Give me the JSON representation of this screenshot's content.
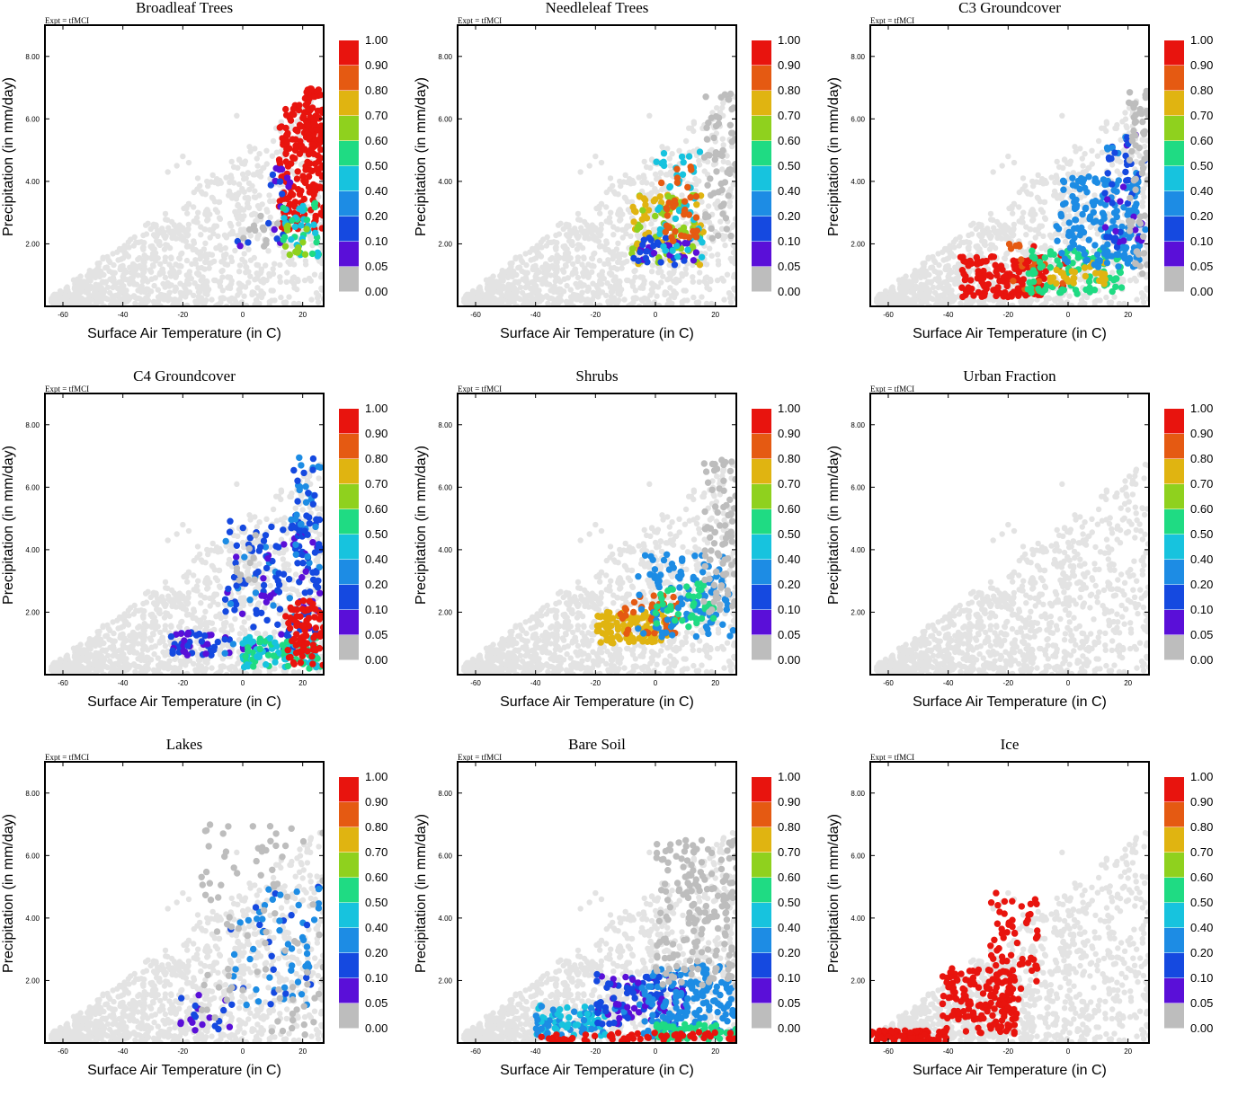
{
  "figure": {
    "expt_label": "Expt = tfMCI",
    "colorbar_labels": [
      "1.00",
      "0.90",
      "0.80",
      "0.70",
      "0.60",
      "0.50",
      "0.40",
      "0.20",
      "0.10",
      "0.05",
      "0.00"
    ],
    "colorbar_colors": [
      "#e8140e",
      "#e55a12",
      "#e0b411",
      "#8fd11e",
      "#1fdb83",
      "#17c3de",
      "#1d8ce4",
      "#1549e0",
      "#5a0fd8",
      "#bdbdbd"
    ],
    "background_color": "#e3e3e3",
    "zero_color": "#bdbdbd"
  },
  "chart_data": [
    {
      "type": "scatter",
      "title": "Broadleaf Trees",
      "xlabel": "Surface Air Temperature (in C)",
      "ylabel": "Precipitation (in mm/day)",
      "xlim": [
        -66,
        27
      ],
      "ylim": [
        0,
        9
      ],
      "xticks": [
        "-60",
        "-40",
        "-20",
        "0",
        "20"
      ],
      "yticks": [
        "2.00",
        "4.00",
        "6.00",
        "8.00"
      ],
      "clusters": [
        {
          "x": [
            12,
            27
          ],
          "y": [
            2.4,
            6.5
          ],
          "v": 0.85,
          "n": 190
        },
        {
          "x": [
            20,
            26
          ],
          "y": [
            5.0,
            7.0
          ],
          "v": 0.85,
          "n": 50
        },
        {
          "x": [
            8,
            16
          ],
          "y": [
            2.0,
            4.5
          ],
          "v": 0.05,
          "n": 22
        },
        {
          "x": [
            13,
            26
          ],
          "y": [
            1.6,
            3.4
          ],
          "v": 0.4,
          "n": 40
        },
        {
          "x": [
            14,
            22
          ],
          "y": [
            1.6,
            2.6
          ],
          "v": 0.55,
          "n": 14
        },
        {
          "x": [
            0,
            8
          ],
          "y": [
            1.8,
            3.0
          ],
          "v": 0.0,
          "n": 10
        },
        {
          "x": [
            -2,
            2
          ],
          "y": [
            1.9,
            2.1
          ],
          "v": 0.05,
          "n": 3
        }
      ]
    },
    {
      "type": "scatter",
      "title": "Needleleaf Trees",
      "xlabel": "Surface Air Temperature (in C)",
      "ylabel": "Precipitation (in mm/day)",
      "xlim": [
        -66,
        27
      ],
      "ylim": [
        0,
        9
      ],
      "xticks": [
        "-60",
        "-40",
        "-20",
        "0",
        "20"
      ],
      "yticks": [
        "2.00",
        "4.00",
        "6.00",
        "8.00"
      ],
      "clusters": [
        {
          "x": [
            -8,
            16
          ],
          "y": [
            1.3,
            3.6
          ],
          "v": 0.6,
          "n": 90
        },
        {
          "x": [
            -8,
            14
          ],
          "y": [
            1.3,
            2.2
          ],
          "v": 0.05,
          "n": 40
        },
        {
          "x": [
            0,
            16
          ],
          "y": [
            1.5,
            5.0
          ],
          "v": 0.35,
          "n": 45
        },
        {
          "x": [
            2,
            14
          ],
          "y": [
            2.0,
            4.5
          ],
          "v": 0.75,
          "n": 35
        },
        {
          "x": [
            16,
            27
          ],
          "y": [
            2.0,
            7.0
          ],
          "v": 0.0,
          "n": 60
        }
      ]
    },
    {
      "type": "scatter",
      "title": "C3 Groundcover",
      "xlabel": "Surface Air Temperature (in C)",
      "ylabel": "Precipitation (in mm/day)",
      "xlim": [
        -66,
        27
      ],
      "ylim": [
        0,
        9
      ],
      "xticks": [
        "-60",
        "-40",
        "-20",
        "0",
        "20"
      ],
      "yticks": [
        "2.00",
        "4.00",
        "6.00",
        "8.00"
      ],
      "clusters": [
        {
          "x": [
            -36,
            -8
          ],
          "y": [
            0.3,
            1.6
          ],
          "v": 0.95,
          "n": 140
        },
        {
          "x": [
            -20,
            0
          ],
          "y": [
            0.5,
            2.0
          ],
          "v": 0.8,
          "n": 35
        },
        {
          "x": [
            -14,
            18
          ],
          "y": [
            0.4,
            1.8
          ],
          "v": 0.45,
          "n": 90
        },
        {
          "x": [
            -6,
            14
          ],
          "y": [
            0.6,
            1.4
          ],
          "v": 0.65,
          "n": 30
        },
        {
          "x": [
            -4,
            24
          ],
          "y": [
            1.2,
            4.2
          ],
          "v": 0.15,
          "n": 170
        },
        {
          "x": [
            12,
            26
          ],
          "y": [
            1.8,
            5.5
          ],
          "v": 0.07,
          "n": 60
        },
        {
          "x": [
            20,
            27
          ],
          "y": [
            1.0,
            7.0
          ],
          "v": 0.0,
          "n": 60
        }
      ]
    },
    {
      "type": "scatter",
      "title": "C4 Groundcover",
      "xlabel": "Surface Air Temperature (in C)",
      "ylabel": "Precipitation (in mm/day)",
      "xlim": [
        -66,
        27
      ],
      "ylim": [
        0,
        9
      ],
      "xticks": [
        "-60",
        "-40",
        "-20",
        "0",
        "20"
      ],
      "yticks": [
        "2.00",
        "4.00",
        "6.00",
        "8.00"
      ],
      "clusters": [
        {
          "x": [
            -24,
            -8
          ],
          "y": [
            0.6,
            1.4
          ],
          "v": 0.05,
          "n": 40
        },
        {
          "x": [
            -6,
            26
          ],
          "y": [
            0.6,
            5.0
          ],
          "v": 0.07,
          "n": 160
        },
        {
          "x": [
            16,
            26
          ],
          "y": [
            3.0,
            7.0
          ],
          "v": 0.1,
          "n": 50
        },
        {
          "x": [
            0,
            26
          ],
          "y": [
            0.2,
            1.2
          ],
          "v": 0.4,
          "n": 100
        },
        {
          "x": [
            14,
            27
          ],
          "y": [
            0.3,
            2.4
          ],
          "v": 0.85,
          "n": 60
        },
        {
          "x": [
            20,
            27
          ],
          "y": [
            1.2,
            2.4
          ],
          "v": 0.95,
          "n": 20
        },
        {
          "x": [
            -4,
            6
          ],
          "y": [
            3.0,
            4.5
          ],
          "v": 0.0,
          "n": 10
        }
      ]
    },
    {
      "type": "scatter",
      "title": "Shrubs",
      "xlabel": "Surface Air Temperature (in C)",
      "ylabel": "Precipitation (in mm/day)",
      "xlim": [
        -66,
        27
      ],
      "ylim": [
        0,
        9
      ],
      "xticks": [
        "-60",
        "-40",
        "-20",
        "0",
        "20"
      ],
      "yticks": [
        "2.00",
        "4.00",
        "6.00",
        "8.00"
      ],
      "clusters": [
        {
          "x": [
            -20,
            4
          ],
          "y": [
            1.0,
            2.0
          ],
          "v": 0.65,
          "n": 110
        },
        {
          "x": [
            -12,
            8
          ],
          "y": [
            1.3,
            2.6
          ],
          "v": 0.75,
          "n": 40
        },
        {
          "x": [
            -6,
            26
          ],
          "y": [
            1.2,
            4.0
          ],
          "v": 0.15,
          "n": 110
        },
        {
          "x": [
            0,
            20
          ],
          "y": [
            1.5,
            3.0
          ],
          "v": 0.45,
          "n": 40
        },
        {
          "x": [
            16,
            27
          ],
          "y": [
            2.0,
            7.0
          ],
          "v": 0.0,
          "n": 80
        }
      ]
    },
    {
      "type": "scatter",
      "title": "Urban Fraction",
      "xlabel": "Surface Air Temperature (in C)",
      "ylabel": "Precipitation (in mm/day)",
      "xlim": [
        -66,
        27
      ],
      "ylim": [
        0,
        9
      ],
      "xticks": [
        "-60",
        "-40",
        "-20",
        "0",
        "20"
      ],
      "yticks": [
        "2.00",
        "4.00",
        "6.00",
        "8.00"
      ],
      "clusters": []
    },
    {
      "type": "scatter",
      "title": "Lakes",
      "xlabel": "Surface Air Temperature (in C)",
      "ylabel": "Precipitation (in mm/day)",
      "xlim": [
        -66,
        27
      ],
      "ylim": [
        0,
        9
      ],
      "xticks": [
        "-60",
        "-40",
        "-20",
        "0",
        "20"
      ],
      "yticks": [
        "2.00",
        "4.00",
        "6.00",
        "8.00"
      ],
      "clusters": [
        {
          "x": [
            -22,
            -4
          ],
          "y": [
            0.4,
            1.6
          ],
          "v": 0.05,
          "n": 20
        },
        {
          "x": [
            -4,
            26
          ],
          "y": [
            1.2,
            5.0
          ],
          "v": 0.12,
          "n": 70
        },
        {
          "x": [
            -14,
            27
          ],
          "y": [
            0.2,
            7.0
          ],
          "v": 0.0,
          "n": 90
        }
      ]
    },
    {
      "type": "scatter",
      "title": "Bare Soil",
      "xlabel": "Surface Air Temperature (in C)",
      "ylabel": "Precipitation (in mm/day)",
      "xlim": [
        -66,
        27
      ],
      "ylim": [
        0,
        9
      ],
      "xticks": [
        "-60",
        "-40",
        "-20",
        "0",
        "20"
      ],
      "yticks": [
        "2.00",
        "4.00",
        "6.00",
        "8.00"
      ],
      "clusters": [
        {
          "x": [
            -40,
            -16
          ],
          "y": [
            0.2,
            1.2
          ],
          "v": 0.2,
          "n": 80
        },
        {
          "x": [
            -20,
            10
          ],
          "y": [
            0.6,
            2.2
          ],
          "v": 0.06,
          "n": 120
        },
        {
          "x": [
            -4,
            27
          ],
          "y": [
            0.2,
            2.5
          ],
          "v": 0.15,
          "n": 150
        },
        {
          "x": [
            0,
            27
          ],
          "y": [
            0.1,
            0.6
          ],
          "v": 0.45,
          "n": 50
        },
        {
          "x": [
            -40,
            27
          ],
          "y": [
            0.05,
            0.35
          ],
          "v": 0.95,
          "n": 60
        },
        {
          "x": [
            0,
            27
          ],
          "y": [
            1.8,
            6.5
          ],
          "v": 0.0,
          "n": 180
        }
      ]
    },
    {
      "type": "scatter",
      "title": "Ice",
      "xlabel": "Surface Air Temperature (in C)",
      "ylabel": "Precipitation (in mm/day)",
      "xlim": [
        -66,
        27
      ],
      "ylim": [
        0,
        9
      ],
      "xticks": [
        "-60",
        "-40",
        "-20",
        "0",
        "20"
      ],
      "yticks": [
        "2.00",
        "4.00",
        "6.00",
        "8.00"
      ],
      "clusters": [
        {
          "x": [
            -66,
            -40
          ],
          "y": [
            0.05,
            0.4
          ],
          "v": 0.95,
          "n": 70
        },
        {
          "x": [
            -42,
            -16
          ],
          "y": [
            0.3,
            2.4
          ],
          "v": 0.95,
          "n": 160
        },
        {
          "x": [
            -26,
            -10
          ],
          "y": [
            1.6,
            4.8
          ],
          "v": 0.95,
          "n": 60
        }
      ]
    }
  ]
}
